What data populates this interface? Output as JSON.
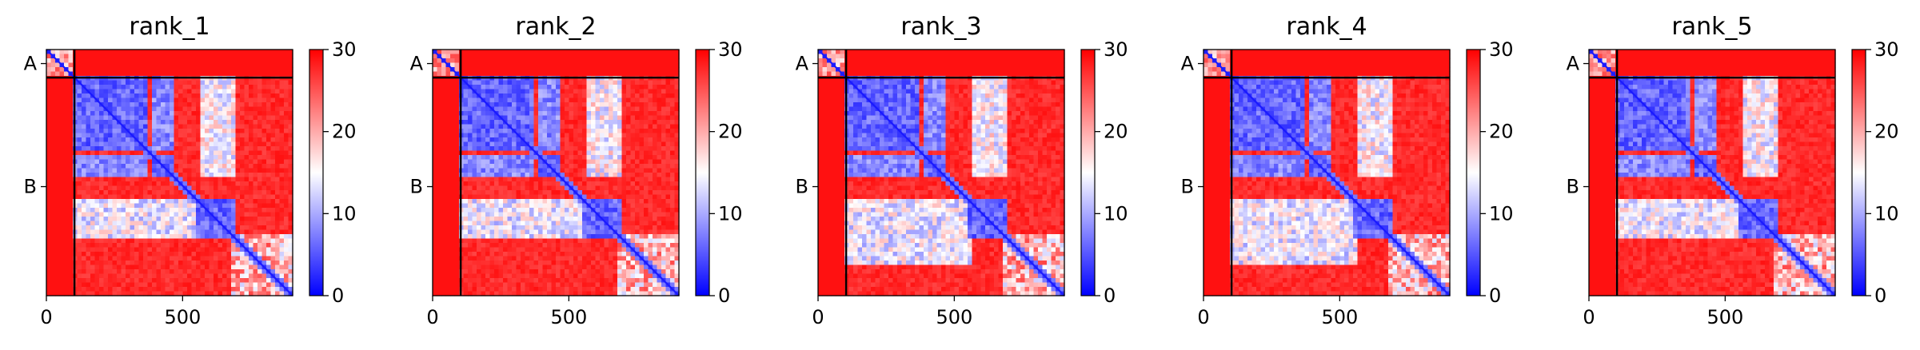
{
  "chart_data": [
    {
      "type": "heatmap",
      "title": "rank_1",
      "xlim": [
        0,
        904
      ],
      "ylim": [
        904,
        0
      ],
      "x_ticks": [
        0,
        500
      ],
      "x_tick_labels": [
        "0",
        "500"
      ],
      "y_tick_labels": [
        "A",
        "B"
      ],
      "chain_boundary": 103,
      "chain_lengths": {
        "A": 103,
        "B": 801
      },
      "colorbar": {
        "min": 0,
        "max": 30,
        "ticks": [
          0,
          10,
          20,
          30
        ],
        "cmap": "bwr"
      },
      "blocks": [
        [
          103,
          365,
          110
        ],
        [
          385,
          472,
          160
        ],
        [
          555,
          690,
          260
        ]
      ],
      "cross_band": [
        555,
        690
      ]
    },
    {
      "type": "heatmap",
      "title": "rank_2",
      "xlim": [
        0,
        904
      ],
      "ylim": [
        904,
        0
      ],
      "x_ticks": [
        0,
        500
      ],
      "x_tick_labels": [
        "0",
        "500"
      ],
      "y_tick_labels": [
        "A",
        "B"
      ],
      "chain_boundary": 103,
      "chain_lengths": {
        "A": 103,
        "B": 801
      },
      "colorbar": {
        "min": 0,
        "max": 30,
        "ticks": [
          0,
          10,
          20,
          30
        ],
        "cmap": "bwr"
      },
      "blocks": [
        [
          103,
          365,
          110
        ],
        [
          385,
          472,
          160
        ],
        [
          555,
          690,
          260
        ]
      ],
      "cross_band": [
        555,
        700
      ]
    },
    {
      "type": "heatmap",
      "title": "rank_3",
      "xlim": [
        0,
        904
      ],
      "ylim": [
        904,
        0
      ],
      "x_ticks": [
        0,
        500
      ],
      "x_tick_labels": [
        "0",
        "500"
      ],
      "y_tick_labels": [
        "A",
        "B"
      ],
      "chain_boundary": 103,
      "chain_lengths": {
        "A": 103,
        "B": 801
      },
      "colorbar": {
        "min": 0,
        "max": 30,
        "ticks": [
          0,
          10,
          20,
          30
        ],
        "cmap": "bwr"
      },
      "blocks": [
        [
          103,
          365,
          110
        ],
        [
          385,
          472,
          160
        ],
        [
          555,
          690,
          260
        ]
      ],
      "cross_band": [
        555,
        790
      ]
    },
    {
      "type": "heatmap",
      "title": "rank_4",
      "xlim": [
        0,
        904
      ],
      "ylim": [
        904,
        0
      ],
      "x_ticks": [
        0,
        500
      ],
      "x_tick_labels": [
        "0",
        "500"
      ],
      "y_tick_labels": [
        "A",
        "B"
      ],
      "chain_boundary": 103,
      "chain_lengths": {
        "A": 103,
        "B": 801
      },
      "colorbar": {
        "min": 0,
        "max": 30,
        "ticks": [
          0,
          10,
          20,
          30
        ],
        "cmap": "bwr"
      },
      "blocks": [
        [
          103,
          365,
          110
        ],
        [
          385,
          472,
          160
        ],
        [
          555,
          690,
          260
        ]
      ],
      "cross_band": [
        555,
        790
      ]
    },
    {
      "type": "heatmap",
      "title": "rank_5",
      "xlim": [
        0,
        904
      ],
      "ylim": [
        904,
        0
      ],
      "x_ticks": [
        0,
        500
      ],
      "x_tick_labels": [
        "0",
        "500"
      ],
      "y_tick_labels": [
        "A",
        "B"
      ],
      "chain_boundary": 103,
      "chain_lengths": {
        "A": 103,
        "B": 801
      },
      "colorbar": {
        "min": 0,
        "max": 30,
        "ticks": [
          0,
          10,
          20,
          30
        ],
        "cmap": "bwr"
      },
      "blocks": [
        [
          103,
          365,
          110
        ],
        [
          385,
          472,
          160
        ],
        [
          555,
          690,
          260
        ]
      ],
      "cross_band": [
        555,
        690
      ]
    }
  ]
}
